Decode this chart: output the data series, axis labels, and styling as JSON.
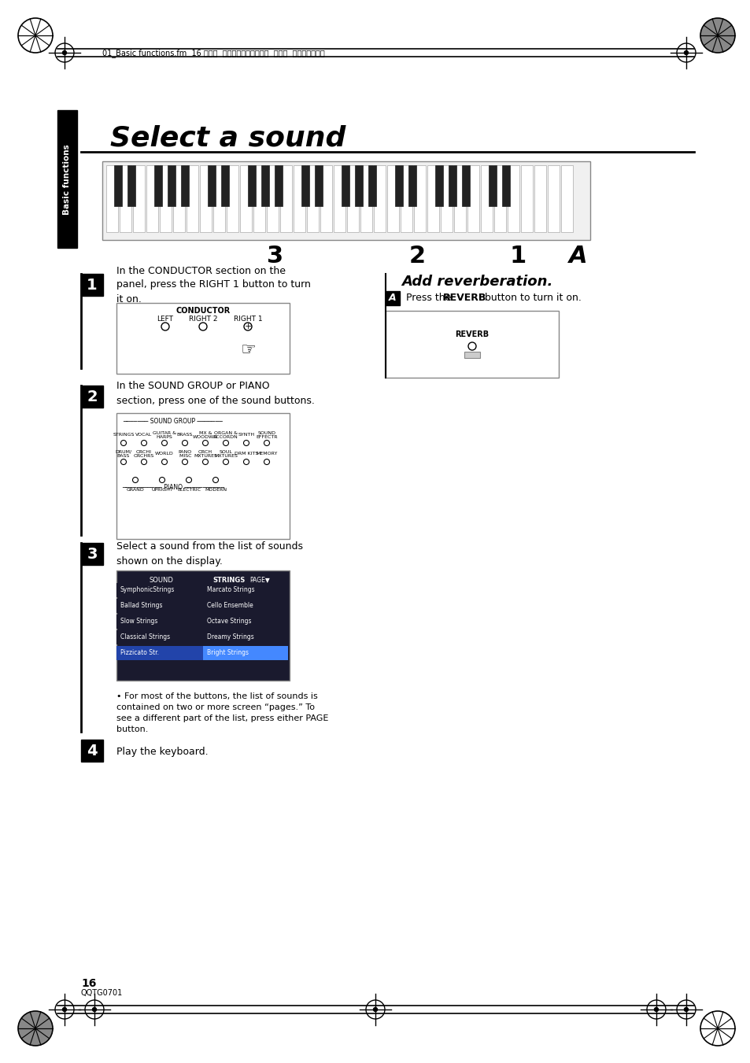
{
  "bg_color": "#ffffff",
  "title": "Select a sound",
  "sidebar_text": "Basic functions",
  "header_file_text": "01_Basic functions.fm  16 ページ  ２００３年５月１９日  月曜日  午後１時３２分",
  "step1_num": "1",
  "step1_text": "In the CONDUCTOR section on the\npanel, press the RIGHT 1 button to turn\nit on.",
  "step2_num": "2",
  "step2_text": "In the SOUND GROUP or PIANO\nsection, press one of the sound buttons.",
  "step3_num": "3",
  "step3_text": "Select a sound from the list of sounds\nshown on the display.",
  "step3_note": "• For most of the buttons, the list of sounds is\ncontained on two or more screen “pages.” To\nsee a different part of the list, press either PAGE\nbutton.",
  "step4_num": "4",
  "step4_text": "Play the keyboard.",
  "sideA_letter": "A",
  "sideA_title": "Add reverberation.",
  "sideA_text": "Press the REVERB button to turn it on.",
  "numbers_3": "3",
  "numbers_2": "2",
  "numbers_1": "1",
  "numbers_A": "A",
  "page_num": "16",
  "page_code": "QQTG0701"
}
